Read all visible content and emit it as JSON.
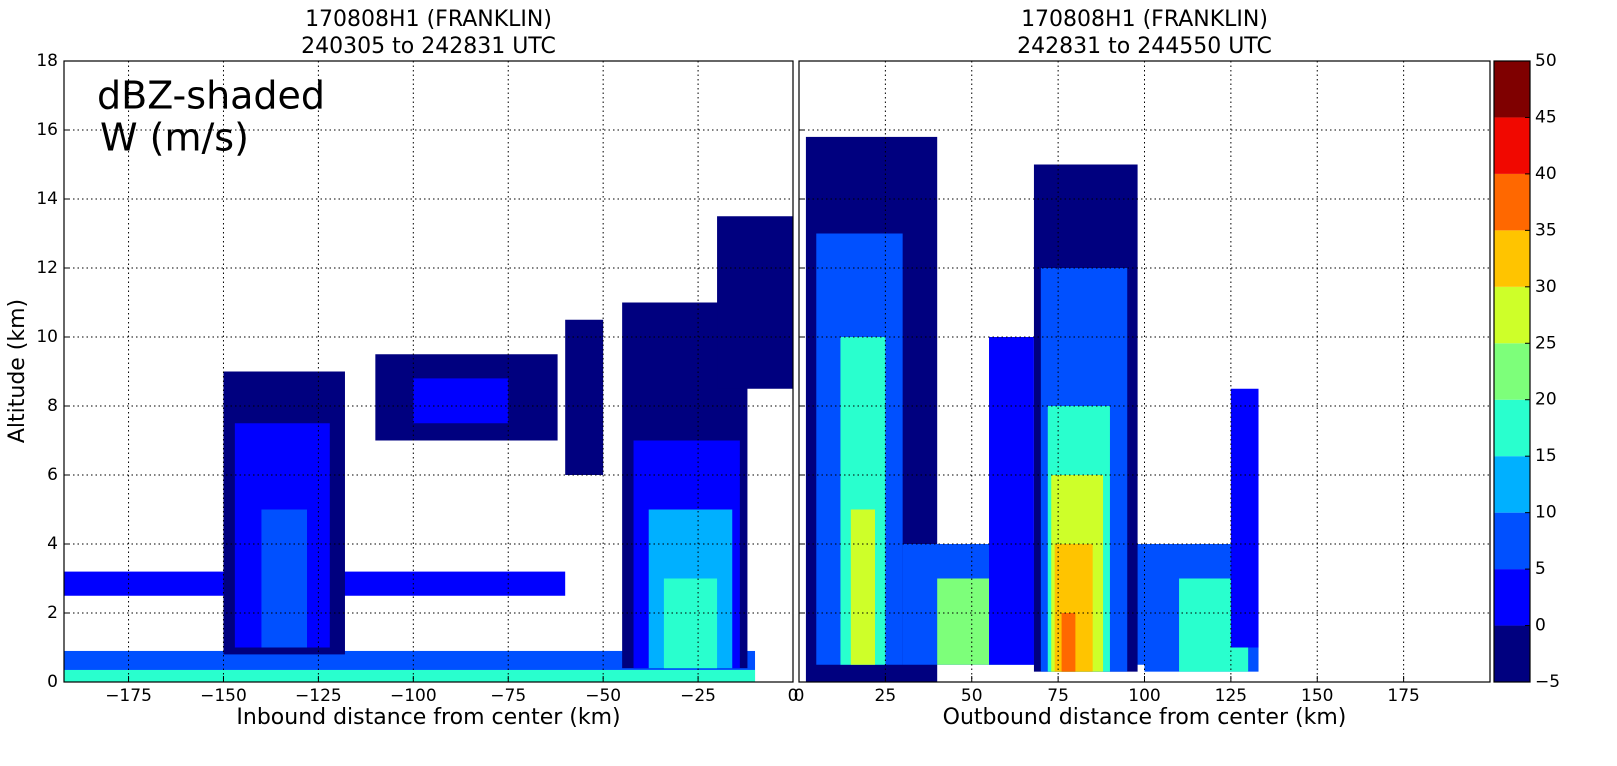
{
  "chart_data": [
    {
      "type": "filled-section",
      "title": [
        "170808H1 (FRANKLIN)",
        "240305 to 242831 UTC"
      ],
      "x_label": "Inbound distance from center (km)",
      "y_label": "Altitude (km)",
      "annotation": [
        "dBZ-shaded",
        "W (m/s)"
      ],
      "xlim": [
        -192,
        0
      ],
      "ylim": [
        0,
        18
      ],
      "xticks": [
        {
          "value": -175,
          "label": "−175"
        },
        {
          "value": -150,
          "label": "−150"
        },
        {
          "value": -125,
          "label": "−125"
        },
        {
          "value": -100,
          "label": "−100"
        },
        {
          "value": -75,
          "label": "−75"
        },
        {
          "value": -50,
          "label": "−50"
        },
        {
          "value": -25,
          "label": "−25"
        },
        0
      ],
      "yticks": [
        0,
        2,
        4,
        6,
        8,
        10,
        12,
        14,
        16,
        18
      ],
      "show_ytick_labels": true,
      "grid": true,
      "regions": [
        {
          "x": [
            -195,
            -10
          ],
          "y": [
            0,
            0.9
          ],
          "dbz": 5
        },
        {
          "x": [
            -195,
            -10
          ],
          "y": [
            0,
            0.35
          ],
          "dbz": 15
        },
        {
          "x": [
            -195,
            -60
          ],
          "y": [
            2.5,
            3.2
          ],
          "dbz": 0
        },
        {
          "x": [
            -150,
            -118
          ],
          "y": [
            0.8,
            9
          ],
          "dbz": -5
        },
        {
          "x": [
            -147,
            -122
          ],
          "y": [
            1,
            7.5
          ],
          "dbz": 0
        },
        {
          "x": [
            -140,
            -128
          ],
          "y": [
            1,
            5
          ],
          "dbz": 5
        },
        {
          "x": [
            -110,
            -62
          ],
          "y": [
            7,
            9.5
          ],
          "dbz": -5
        },
        {
          "x": [
            -100,
            -75
          ],
          "y": [
            7.5,
            8.8
          ],
          "dbz": 0
        },
        {
          "x": [
            -60,
            -50
          ],
          "y": [
            6,
            10.5
          ],
          "dbz": -5
        },
        {
          "x": [
            -45,
            -12
          ],
          "y": [
            0.4,
            11
          ],
          "dbz": -5
        },
        {
          "x": [
            -42,
            -14
          ],
          "y": [
            0.4,
            7
          ],
          "dbz": 0
        },
        {
          "x": [
            -38,
            -16
          ],
          "y": [
            0.4,
            5
          ],
          "dbz": 10
        },
        {
          "x": [
            -34,
            -20
          ],
          "y": [
            0.4,
            3
          ],
          "dbz": 15
        },
        {
          "x": [
            -20,
            0
          ],
          "y": [
            8.5,
            13.5
          ],
          "dbz": -5
        }
      ]
    },
    {
      "type": "filled-section",
      "title": [
        "170808H1 (FRANKLIN)",
        "242831 to 244550 UTC"
      ],
      "x_label": "Outbound distance from center (km)",
      "xlim": [
        0,
        200
      ],
      "ylim": [
        0,
        18
      ],
      "xticks": [
        0,
        25,
        50,
        75,
        100,
        125,
        150,
        175
      ],
      "yticks": [
        0,
        2,
        4,
        6,
        8,
        10,
        12,
        14,
        16,
        18
      ],
      "show_ytick_labels": false,
      "grid": true,
      "regions": [
        {
          "x": [
            2,
            40
          ],
          "y": [
            0,
            15.8
          ],
          "dbz": -5
        },
        {
          "x": [
            5,
            30
          ],
          "y": [
            0.5,
            13
          ],
          "dbz": 5
        },
        {
          "x": [
            12,
            25
          ],
          "y": [
            0.5,
            10
          ],
          "dbz": 15
        },
        {
          "x": [
            15,
            22
          ],
          "y": [
            0.5,
            5
          ],
          "dbz": 25
        },
        {
          "x": [
            30,
            105
          ],
          "y": [
            0.5,
            4
          ],
          "dbz": 5
        },
        {
          "x": [
            40,
            60
          ],
          "y": [
            0.5,
            3
          ],
          "dbz": 20
        },
        {
          "x": [
            55,
            68
          ],
          "y": [
            0.5,
            10
          ],
          "dbz": 0
        },
        {
          "x": [
            68,
            98
          ],
          "y": [
            0.3,
            15
          ],
          "dbz": -5
        },
        {
          "x": [
            70,
            95
          ],
          "y": [
            0.3,
            12
          ],
          "dbz": 5
        },
        {
          "x": [
            72,
            90
          ],
          "y": [
            0.3,
            8
          ],
          "dbz": 15
        },
        {
          "x": [
            73,
            88
          ],
          "y": [
            0.3,
            6
          ],
          "dbz": 25
        },
        {
          "x": [
            74,
            85
          ],
          "y": [
            0.3,
            4
          ],
          "dbz": 30
        },
        {
          "x": [
            76,
            80
          ],
          "y": [
            0.3,
            2
          ],
          "dbz": 35
        },
        {
          "x": [
            100,
            133
          ],
          "y": [
            0.3,
            4
          ],
          "dbz": 5
        },
        {
          "x": [
            110,
            130
          ],
          "y": [
            0.3,
            3
          ],
          "dbz": 15
        },
        {
          "x": [
            125,
            133
          ],
          "y": [
            1,
            8.5
          ],
          "dbz": 0
        }
      ]
    }
  ],
  "colorbar": {
    "levels": [
      -5,
      0,
      5,
      10,
      15,
      20,
      25,
      30,
      35,
      40,
      45,
      50
    ],
    "colors": [
      "#00007f",
      "#0000ff",
      "#0050ff",
      "#00b0ff",
      "#29ffce",
      "#7dff7a",
      "#ceff29",
      "#ffc400",
      "#ff6800",
      "#f10800",
      "#7f0000"
    ],
    "ticks": [
      {
        "value": -5,
        "label": "−5"
      },
      0,
      5,
      10,
      15,
      20,
      25,
      30,
      35,
      40,
      45,
      50
    ]
  }
}
